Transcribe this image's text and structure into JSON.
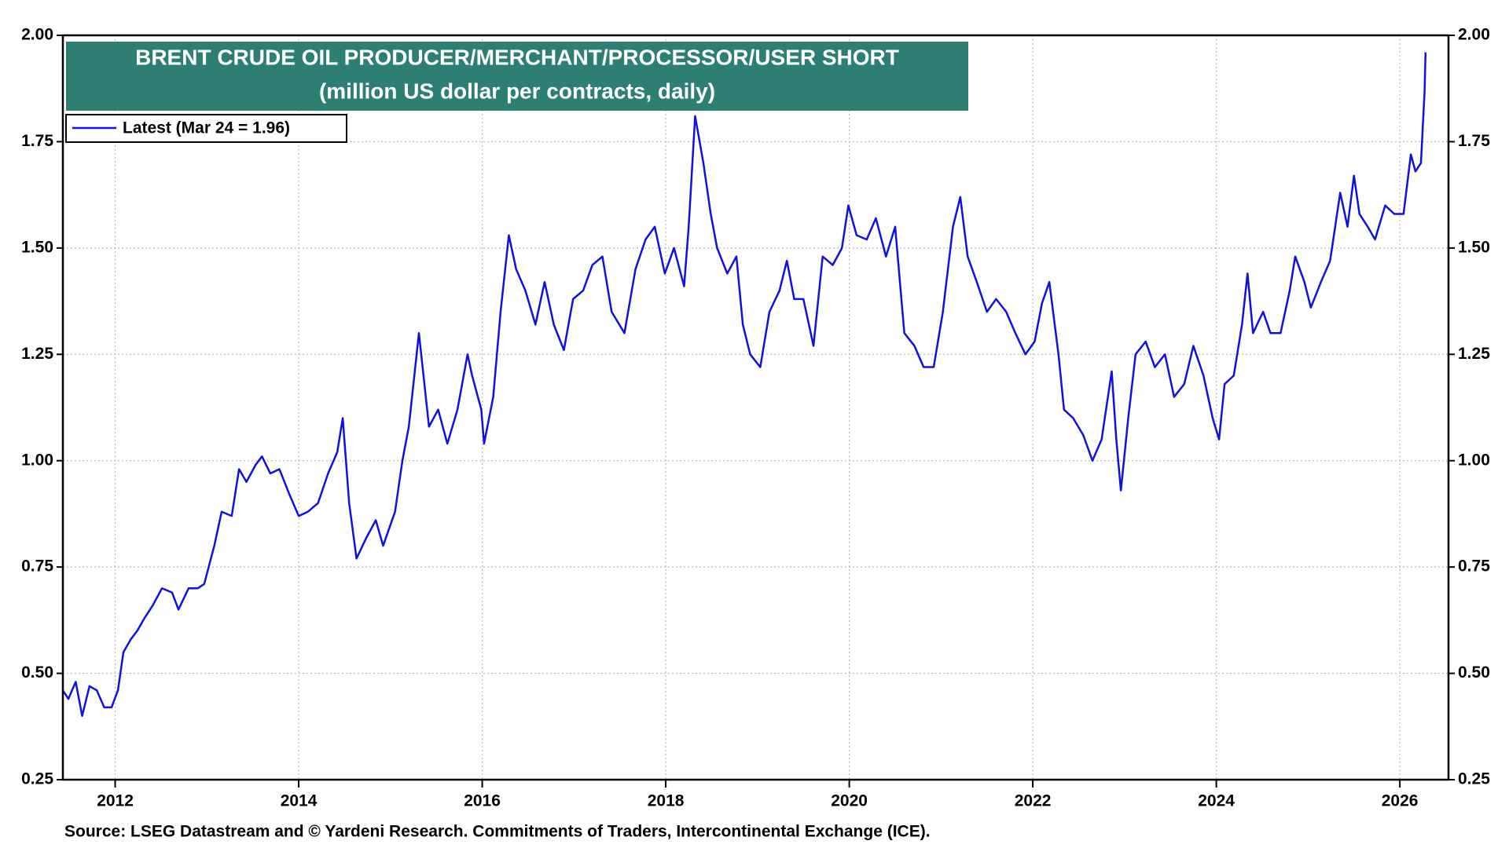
{
  "chart_data": {
    "type": "line",
    "title": "BRENT CRUDE OIL PRODUCER/MERCHANT/PROCESSOR/USER SHORT",
    "subtitle": "(million US dollar per contracts, daily)",
    "source": "Source: LSEG Datastream and © Yardeni Research. Commitments of Traders, Intercontinental Exchange (ICE).",
    "x": [
      2011.43,
      2011.49,
      2011.57,
      2011.64,
      2011.72,
      2011.8,
      2011.88,
      2011.96,
      2012.03,
      2012.09,
      2012.17,
      2012.24,
      2012.32,
      2012.41,
      2012.51,
      2012.62,
      2012.69,
      2012.8,
      2012.9,
      2012.97,
      2013.08,
      2013.16,
      2013.27,
      2013.35,
      2013.43,
      2013.53,
      2013.6,
      2013.69,
      2013.79,
      2013.9,
      2014.0,
      2014.1,
      2014.21,
      2014.32,
      2014.42,
      2014.48,
      2014.55,
      2014.63,
      2014.74,
      2014.84,
      2014.92,
      2015.05,
      2015.13,
      2015.2,
      2015.31,
      2015.36,
      2015.42,
      2015.52,
      2015.62,
      2015.73,
      2015.84,
      2015.89,
      2015.99,
      2016.02,
      2016.12,
      2016.2,
      2016.29,
      2016.37,
      2016.47,
      2016.58,
      2016.68,
      2016.78,
      2016.89,
      2016.99,
      2017.1,
      2017.2,
      2017.31,
      2017.41,
      2017.55,
      2017.67,
      2017.78,
      2017.88,
      2017.99,
      2018.09,
      2018.2,
      2018.25,
      2018.32,
      2018.41,
      2018.49,
      2018.56,
      2018.67,
      2018.77,
      2018.84,
      2018.92,
      2019.03,
      2019.13,
      2019.24,
      2019.32,
      2019.4,
      2019.5,
      2019.61,
      2019.71,
      2019.82,
      2019.92,
      2019.99,
      2020.08,
      2020.19,
      2020.29,
      2020.4,
      2020.5,
      2020.6,
      2020.71,
      2020.81,
      2020.92,
      2021.02,
      2021.13,
      2021.21,
      2021.29,
      2021.39,
      2021.5,
      2021.6,
      2021.71,
      2021.81,
      2021.92,
      2022.02,
      2022.1,
      2022.18,
      2022.28,
      2022.34,
      2022.44,
      2022.55,
      2022.65,
      2022.75,
      2022.86,
      2022.91,
      2022.96,
      2023.04,
      2023.12,
      2023.23,
      2023.33,
      2023.44,
      2023.54,
      2023.65,
      2023.75,
      2023.86,
      2023.96,
      2024.03,
      2024.09,
      2024.19,
      2024.28,
      2024.34,
      2024.4,
      2024.51,
      2024.59,
      2024.7,
      2024.8,
      2024.86,
      2024.96,
      2025.03,
      2025.14,
      2025.24,
      2025.35,
      2025.43,
      2025.5,
      2025.56,
      2025.65,
      2025.73,
      2025.84,
      2025.94,
      2026.04,
      2026.12,
      2026.17,
      2026.23,
      2026.27,
      2026.28
    ],
    "series": [
      {
        "name": "Latest (Mar 24 = 1.96)",
        "color": "#1010e0",
        "values": [
          0.46,
          0.44,
          0.48,
          0.4,
          0.47,
          0.46,
          0.42,
          0.42,
          0.46,
          0.55,
          0.58,
          0.6,
          0.63,
          0.66,
          0.7,
          0.69,
          0.65,
          0.7,
          0.7,
          0.71,
          0.8,
          0.88,
          0.87,
          0.98,
          0.95,
          0.99,
          1.01,
          0.97,
          0.98,
          0.92,
          0.87,
          0.88,
          0.9,
          0.97,
          1.02,
          1.1,
          0.9,
          0.77,
          0.82,
          0.86,
          0.8,
          0.88,
          1.0,
          1.08,
          1.3,
          1.2,
          1.08,
          1.12,
          1.04,
          1.12,
          1.25,
          1.2,
          1.12,
          1.04,
          1.15,
          1.35,
          1.53,
          1.45,
          1.4,
          1.32,
          1.42,
          1.32,
          1.26,
          1.38,
          1.4,
          1.46,
          1.48,
          1.35,
          1.3,
          1.45,
          1.52,
          1.55,
          1.44,
          1.5,
          1.41,
          1.55,
          1.81,
          1.7,
          1.58,
          1.5,
          1.44,
          1.48,
          1.32,
          1.25,
          1.22,
          1.35,
          1.4,
          1.47,
          1.38,
          1.38,
          1.27,
          1.48,
          1.46,
          1.5,
          1.6,
          1.53,
          1.52,
          1.57,
          1.48,
          1.55,
          1.3,
          1.27,
          1.22,
          1.22,
          1.35,
          1.55,
          1.62,
          1.48,
          1.42,
          1.35,
          1.38,
          1.35,
          1.3,
          1.25,
          1.28,
          1.37,
          1.42,
          1.25,
          1.12,
          1.1,
          1.06,
          1.0,
          1.05,
          1.21,
          1.05,
          0.93,
          1.1,
          1.25,
          1.28,
          1.22,
          1.25,
          1.15,
          1.18,
          1.27,
          1.2,
          1.1,
          1.05,
          1.18,
          1.2,
          1.32,
          1.44,
          1.3,
          1.35,
          1.3,
          1.3,
          1.4,
          1.48,
          1.42,
          1.36,
          1.42,
          1.47,
          1.63,
          1.55,
          1.67,
          1.58,
          1.55,
          1.52,
          1.6,
          1.58,
          1.58,
          1.72,
          1.68,
          1.7,
          1.87,
          1.96
        ]
      }
    ],
    "xlim": [
      2011.43,
      2026.53
    ],
    "xticks": [
      2012,
      2014,
      2016,
      2018,
      2020,
      2022,
      2024,
      2026
    ],
    "ylim": [
      0.25,
      2.0
    ],
    "yticks": [
      {
        "value": 0.25,
        "label": "0.25"
      },
      {
        "value": 0.5,
        "label": "0.50"
      },
      {
        "value": 0.75,
        "label": "0.75"
      },
      {
        "value": 1.0,
        "label": "1.00"
      },
      {
        "value": 1.25,
        "label": "1.25"
      },
      {
        "value": 1.5,
        "label": "1.50"
      },
      {
        "value": 1.75,
        "label": "1.75"
      },
      {
        "value": 2.0,
        "label": "2.00"
      }
    ],
    "grid": true,
    "legend": "upper left"
  }
}
